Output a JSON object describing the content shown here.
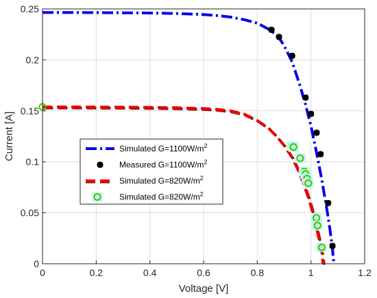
{
  "chart_data": {
    "type": "line",
    "xlabel": "Voltage [V]",
    "ylabel": "Current [A]",
    "xlim": [
      0,
      1.2
    ],
    "ylim": [
      0,
      0.25
    ],
    "x_ticks": [
      0,
      0.2,
      0.4,
      0.6,
      0.8,
      1,
      1.2
    ],
    "x_tick_labels": [
      "0",
      "0.2",
      "0.4",
      "0.6",
      "0.8",
      "1",
      "1.2"
    ],
    "y_ticks": [
      0,
      0.05,
      0.1,
      0.15,
      0.2,
      0.25
    ],
    "y_tick_labels": [
      "0",
      "0.05",
      "0.1",
      "0.15",
      "0.2",
      "0.25"
    ],
    "grid": true,
    "legend_position": "center-left",
    "series": [
      {
        "name": "Simulated G=1100W/m",
        "name_superscript": "2",
        "style": "dash-dot-line",
        "color": "#0000ee",
        "x": [
          0,
          0.1,
          0.2,
          0.3,
          0.4,
          0.5,
          0.6,
          0.65,
          0.7,
          0.75,
          0.8,
          0.85,
          0.88,
          0.9,
          0.93,
          0.96,
          0.98,
          1.0,
          1.02,
          1.04,
          1.06,
          1.07,
          1.08,
          1.085
        ],
        "y": [
          0.2465,
          0.2465,
          0.2464,
          0.2462,
          0.246,
          0.2455,
          0.2445,
          0.2435,
          0.242,
          0.2395,
          0.236,
          0.229,
          0.222,
          0.214,
          0.198,
          0.174,
          0.156,
          0.135,
          0.11,
          0.083,
          0.052,
          0.035,
          0.015,
          0.0
        ]
      },
      {
        "name": "Measured G=1100W/m",
        "name_superscript": "2",
        "style": "markers",
        "marker": "asterisk",
        "color": "#000000",
        "x": [
          0.853,
          0.881,
          0.93,
          0.98,
          1.0,
          1.021,
          1.036,
          1.064,
          1.08
        ],
        "y": [
          0.2295,
          0.2225,
          0.204,
          0.163,
          0.147,
          0.1285,
          0.1075,
          0.0595,
          0.0175
        ]
      },
      {
        "name": "Simulated G=820W/m",
        "name_superscript": "2",
        "style": "dashed-line",
        "color": "#ee0000",
        "shadow_color": "#8b1a1a",
        "x": [
          0,
          0.1,
          0.2,
          0.3,
          0.4,
          0.5,
          0.6,
          0.65,
          0.7,
          0.75,
          0.8,
          0.84,
          0.87,
          0.9,
          0.93,
          0.95,
          0.97,
          0.99,
          1.0,
          1.01,
          1.02,
          1.03,
          1.04,
          1.045
        ],
        "y": [
          0.1538,
          0.1538,
          0.1537,
          0.1536,
          0.1534,
          0.153,
          0.1523,
          0.1515,
          0.15,
          0.147,
          0.1405,
          0.1335,
          0.1255,
          0.116,
          0.104,
          0.093,
          0.08,
          0.065,
          0.056,
          0.046,
          0.036,
          0.024,
          0.011,
          0.0
        ]
      },
      {
        "name": "Simulated G=820W/m",
        "name_superscript": "2",
        "style": "markers",
        "marker": "circle",
        "color": "#33cc00",
        "highlight_color": "#c8f5ee",
        "x": [
          0.0,
          0.93,
          0.935,
          0.96,
          0.975,
          0.98,
          0.985,
          0.99,
          1.02,
          1.024,
          1.04
        ],
        "y": [
          0.1538,
          0.1155,
          0.1145,
          0.1035,
          0.0905,
          0.088,
          0.0835,
          0.079,
          0.045,
          0.0375,
          0.016
        ]
      }
    ]
  }
}
